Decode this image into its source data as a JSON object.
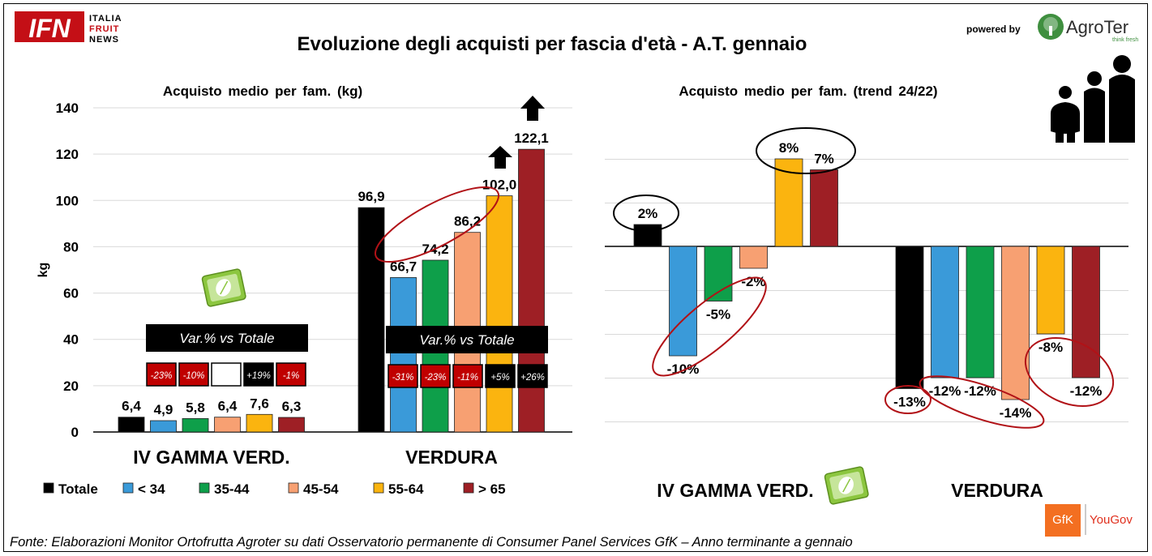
{
  "header": {
    "logo_left": {
      "mark": "IFN",
      "lines": [
        "ITALIA",
        "FRUIT",
        "NEWS"
      ]
    },
    "title": "Evoluzione degli acquisti per fascia d'età - A.T. gennaio",
    "powered_by": "powered by",
    "logo_right": {
      "name": "AgroTer",
      "tagline": "think fresh"
    }
  },
  "colors": {
    "Totale": "#000000",
    "< 34": "#3a9ad9",
    "35-44": "#0e9f4a",
    "45-54": "#f7a072",
    "55-64": "#fbb40f",
    "> 65": "#9e1f25",
    "annotation": "#b11217",
    "var_negative_bg": "#c00000",
    "var_positive_bg": "#000000"
  },
  "legend": {
    "items": [
      {
        "label": "Totale",
        "color": "#000000"
      },
      {
        "label": "< 34",
        "color": "#3a9ad9"
      },
      {
        "label": "35-44",
        "color": "#0e9f4a"
      },
      {
        "label": "45-54",
        "color": "#f7a072"
      },
      {
        "label": "55-64",
        "color": "#fbb40f"
      },
      {
        "label": "> 65",
        "color": "#9e1f25"
      }
    ]
  },
  "var_box": {
    "label": "Var.% vs Totale",
    "iv_gamma": [
      "-23%",
      "-10%",
      "",
      "+19%",
      "-1%"
    ],
    "verdura": [
      "-31%",
      "-23%",
      "-11%",
      "+5%",
      "+26%"
    ]
  },
  "icons": {
    "family": "family-silhouette-icon",
    "package": "salad-package-icon",
    "arrows": "up-arrow-icon"
  },
  "footer": {
    "source": "Fonte: Elaborazioni Monitor Ortofrutta Agroter su dati Osservatorio permanente di Consumer Panel Services GfK – Anno terminante a gennaio",
    "logos": [
      "GfK",
      "YouGov"
    ]
  },
  "chart_data": [
    {
      "type": "bar",
      "title": "Acquisto medio per fam. (kg)",
      "ylabel": "kg",
      "ylim": [
        0,
        140
      ],
      "yticks": [
        "0",
        "20",
        "40",
        "60",
        "80",
        "100",
        "120",
        "140"
      ],
      "categories": [
        "IV GAMMA VERD.",
        "VERDURA"
      ],
      "series": [
        {
          "name": "Totale",
          "values": [
            6.4,
            96.9
          ],
          "labels": [
            "6,4",
            "96,9"
          ]
        },
        {
          "name": "< 34",
          "values": [
            4.9,
            66.7
          ],
          "labels": [
            "4,9",
            "66,7"
          ]
        },
        {
          "name": "35-44",
          "values": [
            5.8,
            74.2
          ],
          "labels": [
            "5,8",
            "74,2"
          ]
        },
        {
          "name": "45-54",
          "values": [
            6.4,
            86.2
          ],
          "labels": [
            "6,4",
            "86,2"
          ]
        },
        {
          "name": "55-64",
          "values": [
            7.6,
            102.0
          ],
          "labels": [
            "7,6",
            "102,0"
          ]
        },
        {
          "name": "> 65",
          "values": [
            6.3,
            122.1
          ],
          "labels": [
            "6,3",
            "122,1"
          ]
        }
      ],
      "grid": true,
      "legend": "bottom"
    },
    {
      "type": "bar",
      "title": "Acquisto medio per fam. (trend 24/22)",
      "ylabel": "",
      "ylim": [
        -18,
        11
      ],
      "categories": [
        "IV GAMMA VERD.",
        "VERDURA"
      ],
      "series": [
        {
          "name": "Totale",
          "values": [
            2,
            -13
          ],
          "labels": [
            "2%",
            "-13%"
          ]
        },
        {
          "name": "< 34",
          "values": [
            -10,
            -12
          ],
          "labels": [
            "-10%",
            "-12%"
          ]
        },
        {
          "name": "35-44",
          "values": [
            -5,
            -12
          ],
          "labels": [
            "-5%",
            "-12%"
          ]
        },
        {
          "name": "45-54",
          "values": [
            -2,
            -14
          ],
          "labels": [
            "-2%",
            "-14%"
          ]
        },
        {
          "name": "55-64",
          "values": [
            8,
            -8
          ],
          "labels": [
            "8%",
            "-8%"
          ]
        },
        {
          "name": "> 65",
          "values": [
            7,
            -12
          ],
          "labels": [
            "7%",
            "-12%"
          ]
        }
      ],
      "grid": true,
      "legend": "bottom (shared)"
    }
  ]
}
